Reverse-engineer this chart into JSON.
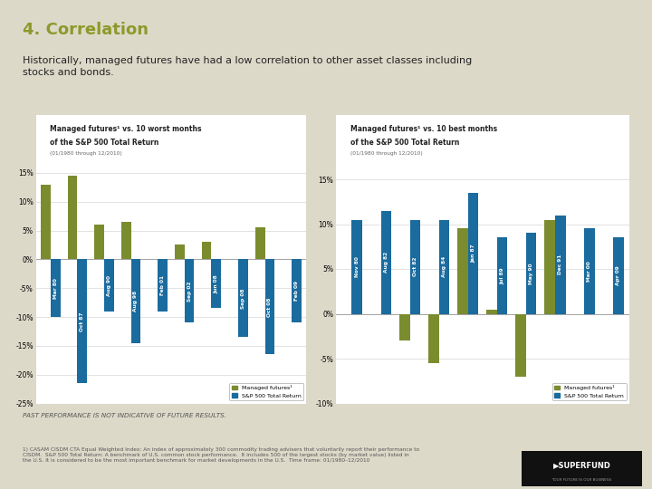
{
  "background_color": "#ddd9c9",
  "chart_bg": "#ffffff",
  "title": "4. Correlation",
  "title_color": "#8b9a2a",
  "subtitle": "Historically, managed futures have had a low correlation to other asset classes including\nstocks and bonds.",
  "subtitle_color": "#222222",
  "managed_color": "#7a8c2e",
  "sp500_color": "#1a6b9e",
  "footnote": "PAST PERFORMANCE IS NOT INDICATIVE OF FUTURE RESULTS.",
  "footnote2": "1) CASAM CISDM CTA Equal Weighted Index: An index of approximately 300 commodity trading advisers that voluntarily report their performance to\nCISDM.  S&P 500 Total Return: A benchmark of U.S. common stock performance.  It includes 500 of the largest stocks (by market value) listed in\nthe U.S. It is considered to be the most important benchmark for market developments in the U.S.  Time frame: 01/1980–12/2010",
  "left_chart": {
    "title_line1": "Managed futures¹ vs. 10 worst months",
    "title_line2": "of the S&P 500 Total Return",
    "title_date": "(01/1980 through 12/2010)",
    "categories": [
      "Mar 80",
      "Oct 87",
      "Aug 90",
      "Aug 98",
      "Feb 01",
      "Sep 02",
      "Jun 08",
      "Sep 08",
      "Oct 08",
      "Feb 09"
    ],
    "managed": [
      13.0,
      14.5,
      6.0,
      6.5,
      0.0,
      2.5,
      3.0,
      0.0,
      5.5,
      0.0
    ],
    "sp500": [
      -10.0,
      -21.5,
      -9.0,
      -14.5,
      -9.0,
      -11.0,
      -8.5,
      -13.5,
      -16.5,
      -11.0
    ],
    "ylim": [
      -25,
      17
    ],
    "yticks": [
      15,
      10,
      5,
      0,
      -5,
      -10,
      -15,
      -20,
      -25
    ]
  },
  "right_chart": {
    "title_line1": "Managed futures¹ vs. 10 best months",
    "title_line2": "of the S&P 500 Total Return",
    "title_date": "(01/1980 through 12/2010)",
    "categories": [
      "Nov 80",
      "Aug 82",
      "Oct 82",
      "Aug 84",
      "Jan 87",
      "Jul 89",
      "May 90",
      "Dec 91",
      "Mar 00",
      "Apr 09"
    ],
    "managed": [
      0.0,
      0.0,
      -3.0,
      -5.5,
      9.5,
      0.5,
      -7.0,
      10.5,
      0.0,
      0.0
    ],
    "sp500": [
      10.5,
      11.5,
      10.5,
      10.5,
      13.5,
      8.5,
      9.0,
      11.0,
      9.5,
      8.5
    ],
    "ylim": [
      -10,
      17
    ],
    "yticks": [
      15,
      10,
      5,
      0,
      -5,
      -10
    ]
  }
}
